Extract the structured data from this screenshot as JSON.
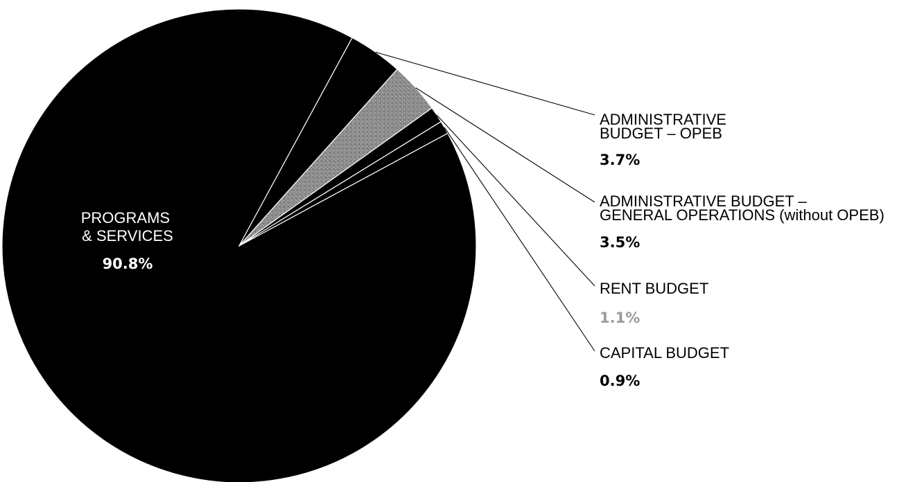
{
  "chart_data": {
    "type": "pie",
    "slices": [
      {
        "label": [
          "PROGRAMS",
          "& SERVICES"
        ],
        "pct_text": "90.8%",
        "value": 90.8,
        "color": "#000000"
      },
      {
        "label": [
          "ADMINISTRATIVE",
          "BUDGET – OPEB"
        ],
        "pct_text": "3.7%",
        "value": 3.7,
        "color": "#000000"
      },
      {
        "label": [
          "ADMINISTRATIVE BUDGET –",
          "GENERAL OPERATIONS (without OPEB)"
        ],
        "pct_text": "3.5%",
        "value": 3.5,
        "color": "#8a8a8a"
      },
      {
        "label": [
          "RENT BUDGET"
        ],
        "pct_text": "1.1%",
        "value": 1.1,
        "color": "#000000"
      },
      {
        "label": [
          "CAPITAL BUDGET"
        ],
        "pct_text": "0.9%",
        "value": 0.9,
        "color": "#000000"
      }
    ],
    "legend": "none"
  }
}
